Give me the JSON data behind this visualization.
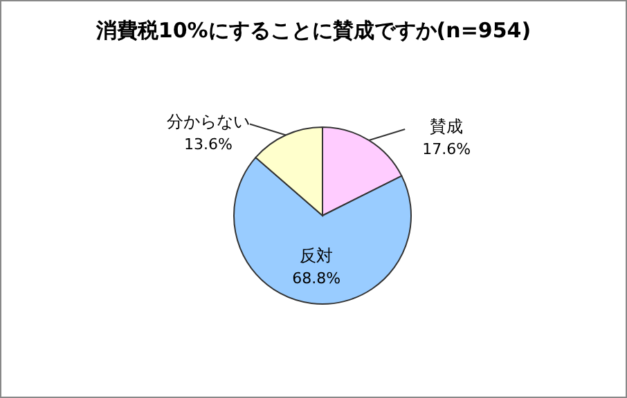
{
  "chart_data": {
    "type": "pie",
    "title": "消費税10%にすることに賛成ですか(n=954)",
    "categories": [
      "賛成",
      "反対",
      "分からない"
    ],
    "values": [
      17.6,
      68.8,
      13.6
    ],
    "colors": [
      "#ffccff",
      "#99ccff",
      "#ffffcc"
    ],
    "value_labels": [
      "17.6%",
      "68.8%",
      "13.6%"
    ]
  }
}
